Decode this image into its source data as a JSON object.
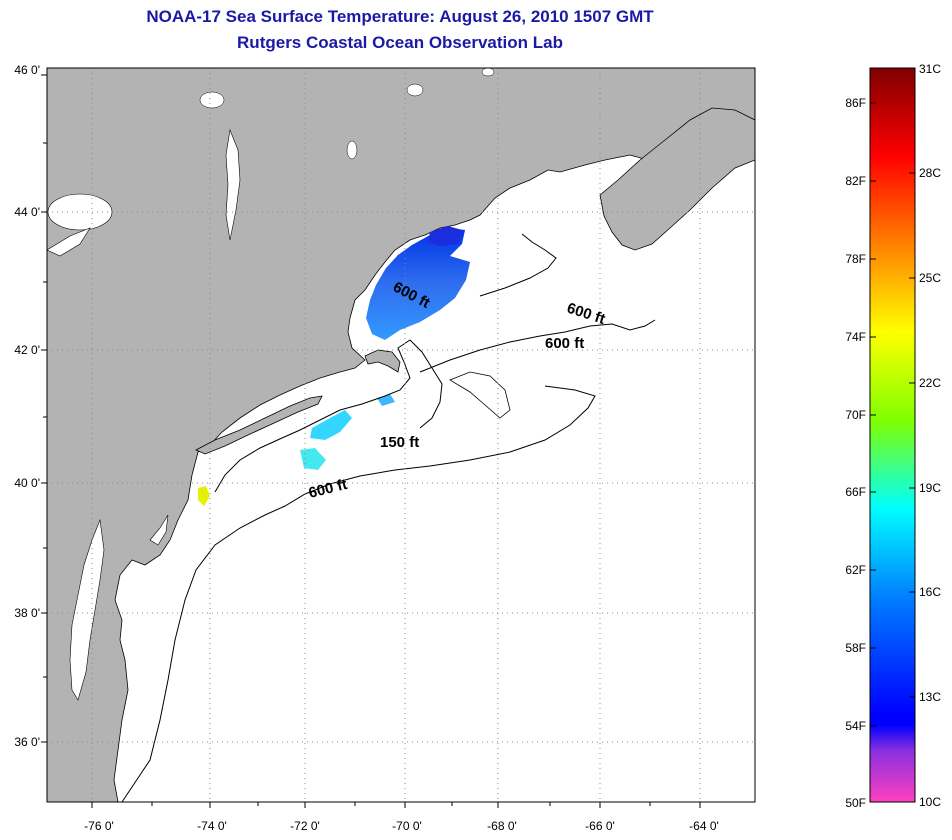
{
  "header": {
    "title": "NOAA-17 Sea Surface Temperature:  August 26, 2010 1507 GMT",
    "subtitle": "Rutgers Coastal Ocean Observation Lab"
  },
  "map": {
    "lon_labels": [
      "-76 0'",
      "-74 0'",
      "-72 0'",
      "-70 0'",
      "-68 0'",
      "-66 0'",
      "-64 0'"
    ],
    "lat_labels": [
      "46 0'",
      "44 0'",
      "42 0'",
      "40 0'",
      "38 0'",
      "36 0'"
    ],
    "contour_labels": [
      "600 ft",
      "600 ft",
      "600 ft",
      "150 ft",
      "600 ft"
    ],
    "colors": {
      "land": "#b3b3b3",
      "ocean": "#ffffff"
    }
  },
  "colorbar": {
    "fahrenheit_labels": [
      "86F",
      "82F",
      "78F",
      "74F",
      "70F",
      "66F",
      "62F",
      "58F",
      "54F",
      "50F"
    ],
    "celsius_labels": [
      "31C",
      "28C",
      "25C",
      "22C",
      "19C",
      "16C",
      "13C",
      "10C"
    ],
    "colors": [
      "#ff40c0",
      "#8000ff",
      "#0000ff",
      "#0080ff",
      "#00ffff",
      "#80ff00",
      "#ffff00",
      "#ff8000",
      "#ff0000",
      "#800000"
    ]
  }
}
